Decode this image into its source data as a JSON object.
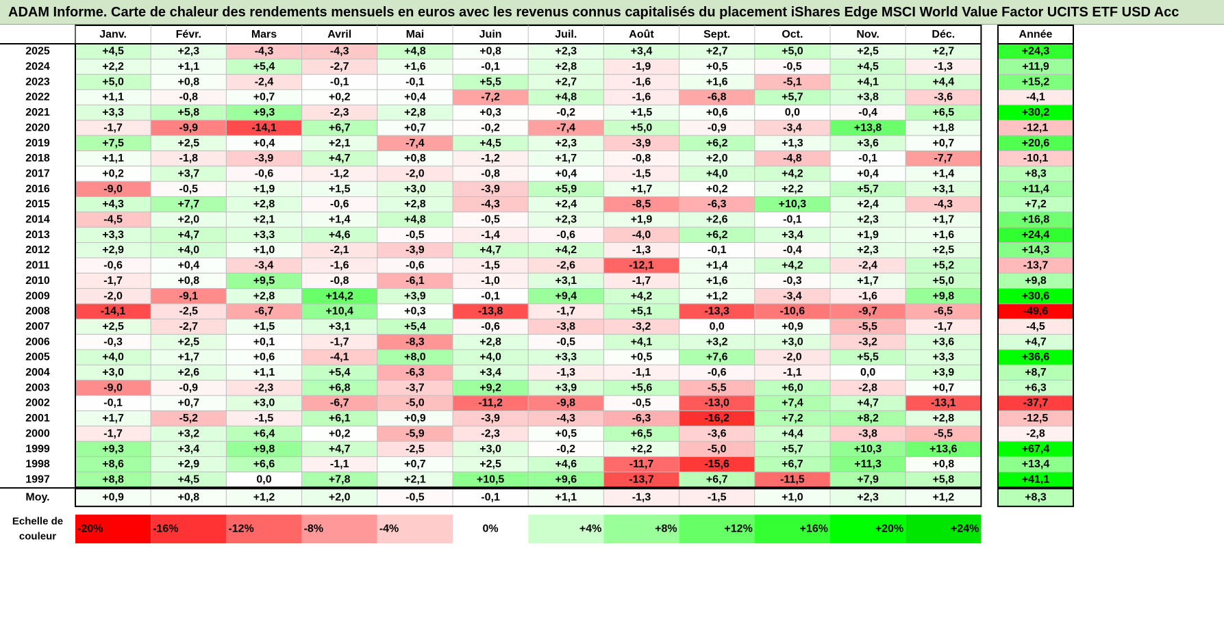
{
  "title": "ADAM Informe. Carte de chaleur des rendements mensuels en euros avec les revenus connus capitalisés du placement iShares Edge MSCI World Value Factor UCITS ETF USD Acc",
  "chart_data": {
    "type": "heatmap",
    "title": "ADAM Informe. Carte de chaleur des rendements mensuels en euros avec les revenus connus capitalisés du placement iShares Edge MSCI World Value Factor UCITS ETF USD Acc",
    "months": [
      "Janv.",
      "Févr.",
      "Mars",
      "Avril",
      "Mai",
      "Juin",
      "Juil.",
      "Août",
      "Sept.",
      "Oct.",
      "Nov.",
      "Déc."
    ],
    "year_header": "Année",
    "rows": [
      {
        "year": "2025",
        "values": [
          4.5,
          2.3,
          -4.3,
          -4.3,
          4.8,
          0.8,
          2.3,
          3.4,
          2.7,
          5.0,
          2.5,
          2.7
        ],
        "annual": 24.3
      },
      {
        "year": "2024",
        "values": [
          2.2,
          1.1,
          5.4,
          -2.7,
          1.6,
          -0.1,
          2.8,
          -1.9,
          0.5,
          -0.5,
          4.5,
          -1.3
        ],
        "annual": 11.9
      },
      {
        "year": "2023",
        "values": [
          5.0,
          0.8,
          -2.4,
          -0.1,
          -0.1,
          5.5,
          2.7,
          -1.6,
          1.6,
          -5.1,
          4.1,
          4.4
        ],
        "annual": 15.2
      },
      {
        "year": "2022",
        "values": [
          1.1,
          -0.8,
          0.7,
          0.2,
          0.4,
          -7.2,
          4.8,
          -1.6,
          -6.8,
          5.7,
          3.8,
          -3.6
        ],
        "annual": -4.1
      },
      {
        "year": "2021",
        "values": [
          3.3,
          5.8,
          9.3,
          -2.3,
          2.8,
          0.3,
          -0.2,
          1.5,
          0.6,
          -0.0,
          -0.4,
          6.5
        ],
        "annual": 30.2
      },
      {
        "year": "2020",
        "values": [
          -1.7,
          -9.9,
          -14.1,
          6.7,
          0.7,
          -0.2,
          -7.4,
          5.0,
          -0.9,
          -3.4,
          13.8,
          1.8
        ],
        "annual": -12.1
      },
      {
        "year": "2019",
        "values": [
          7.5,
          2.5,
          0.4,
          2.1,
          -7.4,
          4.5,
          2.3,
          -3.9,
          6.2,
          1.3,
          3.6,
          0.7
        ],
        "annual": 20.6
      },
      {
        "year": "2018",
        "values": [
          1.1,
          -1.8,
          -3.9,
          4.7,
          0.8,
          -1.2,
          1.7,
          -0.8,
          2.0,
          -4.8,
          -0.1,
          -7.7
        ],
        "annual": -10.1
      },
      {
        "year": "2017",
        "values": [
          0.2,
          3.7,
          -0.6,
          -1.2,
          -2.0,
          -0.8,
          0.4,
          -1.5,
          4.0,
          4.2,
          0.4,
          1.4
        ],
        "annual": 8.3
      },
      {
        "year": "2016",
        "values": [
          -9.0,
          -0.5,
          1.9,
          1.5,
          3.0,
          -3.9,
          5.9,
          1.7,
          0.2,
          2.2,
          5.7,
          3.1
        ],
        "annual": 11.4
      },
      {
        "year": "2015",
        "values": [
          4.3,
          7.7,
          2.8,
          -0.6,
          2.8,
          -4.3,
          2.4,
          -8.5,
          -6.3,
          10.3,
          2.4,
          -4.3
        ],
        "annual": 7.2
      },
      {
        "year": "2014",
        "values": [
          -4.5,
          2.0,
          2.1,
          1.4,
          4.8,
          -0.5,
          2.3,
          1.9,
          2.6,
          -0.1,
          2.3,
          1.7
        ],
        "annual": 16.8
      },
      {
        "year": "2013",
        "values": [
          3.3,
          4.7,
          3.3,
          4.6,
          -0.5,
          -1.4,
          -0.6,
          -4.0,
          6.2,
          3.4,
          1.9,
          1.6
        ],
        "annual": 24.4
      },
      {
        "year": "2012",
        "values": [
          2.9,
          4.0,
          1.0,
          -2.1,
          -3.9,
          4.7,
          4.2,
          -1.3,
          -0.1,
          -0.4,
          2.3,
          2.5
        ],
        "annual": 14.3
      },
      {
        "year": "2011",
        "values": [
          -0.6,
          0.4,
          -3.4,
          -1.6,
          -0.6,
          -1.5,
          -2.6,
          -12.1,
          1.4,
          4.2,
          -2.4,
          5.2
        ],
        "annual": -13.7
      },
      {
        "year": "2010",
        "values": [
          -1.7,
          0.8,
          9.5,
          -0.8,
          -6.1,
          -1.0,
          3.1,
          -1.7,
          1.6,
          -0.3,
          1.7,
          5.0
        ],
        "annual": 9.8
      },
      {
        "year": "2009",
        "values": [
          -2.0,
          -9.1,
          2.8,
          14.2,
          3.9,
          -0.1,
          9.4,
          4.2,
          1.2,
          -3.4,
          -1.6,
          9.8
        ],
        "annual": 30.6
      },
      {
        "year": "2008",
        "values": [
          -14.1,
          -2.5,
          -6.7,
          10.4,
          0.3,
          -13.8,
          -1.7,
          5.1,
          -13.3,
          -10.6,
          -9.7,
          -6.5
        ],
        "annual": -49.6
      },
      {
        "year": "2007",
        "values": [
          2.5,
          -2.7,
          1.5,
          3.1,
          5.4,
          -0.6,
          -3.8,
          -3.2,
          0.0,
          0.9,
          -5.5,
          -1.7
        ],
        "annual": -4.5
      },
      {
        "year": "2006",
        "values": [
          -0.3,
          2.5,
          0.1,
          -1.7,
          -8.3,
          2.8,
          -0.5,
          4.1,
          3.2,
          3.0,
          -3.2,
          3.6
        ],
        "annual": 4.7
      },
      {
        "year": "2005",
        "values": [
          4.0,
          1.7,
          0.6,
          -4.1,
          8.0,
          4.0,
          3.3,
          0.5,
          7.6,
          -2.0,
          5.5,
          3.3
        ],
        "annual": 36.6
      },
      {
        "year": "2004",
        "values": [
          3.0,
          2.6,
          1.1,
          5.4,
          -6.3,
          3.4,
          -1.3,
          -1.1,
          -0.6,
          -1.1,
          0.0,
          3.9
        ],
        "annual": 8.7
      },
      {
        "year": "2003",
        "values": [
          -9.0,
          -0.9,
          -2.3,
          6.8,
          -3.7,
          9.2,
          3.9,
          5.6,
          -5.5,
          6.0,
          -2.8,
          0.7
        ],
        "annual": 6.3
      },
      {
        "year": "2002",
        "values": [
          -0.1,
          0.7,
          3.0,
          -6.7,
          -5.0,
          -11.2,
          -9.8,
          -0.5,
          -13.0,
          7.4,
          4.7,
          -13.1
        ],
        "annual": -37.7
      },
      {
        "year": "2001",
        "values": [
          1.7,
          -5.2,
          -1.5,
          6.1,
          0.9,
          -3.9,
          -4.3,
          -6.3,
          -16.2,
          7.2,
          8.2,
          2.8
        ],
        "annual": -12.5
      },
      {
        "year": "2000",
        "values": [
          -1.7,
          3.2,
          6.4,
          0.2,
          -5.9,
          -2.3,
          0.5,
          6.5,
          -3.6,
          4.4,
          -3.8,
          -5.5
        ],
        "annual": -2.8
      },
      {
        "year": "1999",
        "values": [
          9.3,
          3.4,
          9.8,
          4.7,
          -2.5,
          3.0,
          -0.2,
          2.2,
          -5.0,
          5.7,
          10.3,
          13.6
        ],
        "annual": 67.4
      },
      {
        "year": "1998",
        "values": [
          8.6,
          2.9,
          6.6,
          -1.1,
          0.7,
          2.5,
          4.6,
          -11.7,
          -15.6,
          6.7,
          11.3,
          0.8
        ],
        "annual": 13.4
      },
      {
        "year": "1997",
        "values": [
          8.8,
          4.5,
          0.0,
          7.8,
          2.1,
          10.5,
          9.6,
          -13.7,
          6.7,
          -11.5,
          7.9,
          5.8
        ],
        "annual": 41.1
      }
    ],
    "average": {
      "label": "Moy.",
      "values": [
        0.9,
        0.8,
        1.2,
        2.0,
        -0.5,
        -0.1,
        1.1,
        -1.3,
        -1.5,
        1.0,
        2.3,
        1.2
      ],
      "annual": 8.3
    },
    "scale": {
      "label_line1": "Echelle de",
      "label_line2": "couleur",
      "stops": [
        {
          "label": "-20%",
          "value": -20,
          "color": "#ff0000"
        },
        {
          "label": "-16%",
          "value": -16,
          "color": "#ff3333"
        },
        {
          "label": "-12%",
          "value": -12,
          "color": "#ff6666"
        },
        {
          "label": "-8%",
          "value": -8,
          "color": "#ff9999"
        },
        {
          "label": "-4%",
          "value": -4,
          "color": "#ffcccc"
        },
        {
          "label": "0%",
          "value": 0,
          "color": "#ffffff"
        },
        {
          "label": "+4%",
          "value": 4,
          "color": "#ccffcc"
        },
        {
          "label": "+8%",
          "value": 8,
          "color": "#99ff99"
        },
        {
          "label": "+12%",
          "value": 12,
          "color": "#66ff66"
        },
        {
          "label": "+16%",
          "value": 16,
          "color": "#33ff33"
        },
        {
          "label": "+20%",
          "value": 20,
          "color": "#00ff00"
        },
        {
          "label": "+24%",
          "value": 24,
          "color": "#00e600"
        }
      ]
    },
    "annual_scale": {
      "min": -50,
      "max": 30
    },
    "colors": {
      "title_bg": "#d2e6c8",
      "neg_full": "#ff0000",
      "pos_full": "#00ff00",
      "grid": "#bfbfbf"
    }
  }
}
